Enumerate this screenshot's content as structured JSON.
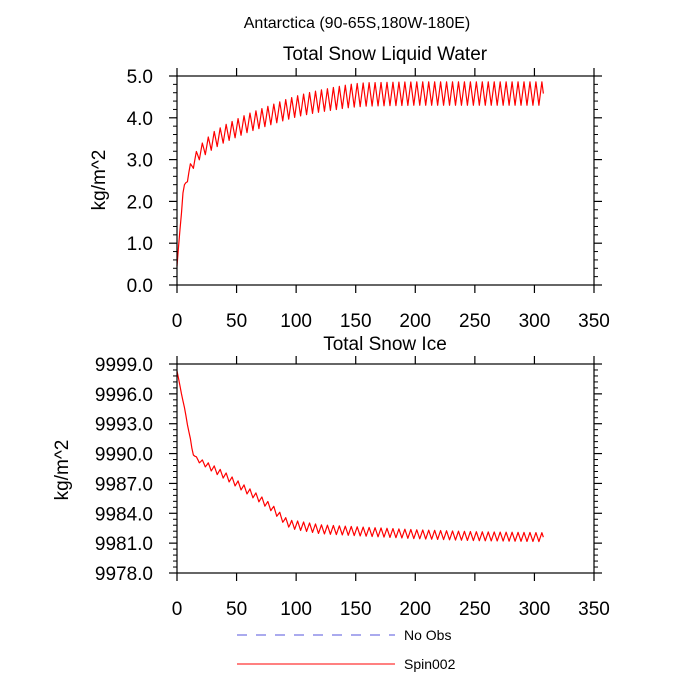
{
  "figure": {
    "title": "Antarctica (90-65S,180W-180E)"
  },
  "legend": {
    "entries": [
      {
        "label": "No Obs",
        "color": "#5555dd",
        "dashed": true
      },
      {
        "label": "Spin002",
        "color": "#ff0000",
        "dashed": false
      }
    ]
  },
  "chart_data": [
    {
      "type": "line",
      "title": "Total Snow Liquid Water",
      "xlabel": "",
      "ylabel": "kg/m^2",
      "xlim": [
        0,
        350
      ],
      "ylim": [
        0,
        5
      ],
      "x_ticks": [
        0,
        50,
        100,
        150,
        200,
        250,
        300,
        350
      ],
      "y_ticks": [
        0,
        1,
        2,
        3,
        4,
        5
      ],
      "y_tick_labels": [
        "0.0",
        "1.0",
        "2.0",
        "3.0",
        "4.0",
        "5.0"
      ],
      "grid": false,
      "series": [
        {
          "name": "Spin002",
          "color": "#ff0000",
          "x_start": 0,
          "x_end": 308,
          "seasonal_period": 5,
          "points": [
            [
              0,
              0.45
            ],
            [
              5,
              2.2
            ],
            [
              10,
              2.7
            ],
            [
              15,
              3.0
            ],
            [
              20,
              3.2
            ],
            [
              30,
              3.45
            ],
            [
              40,
              3.62
            ],
            [
              50,
              3.75
            ],
            [
              60,
              3.88
            ],
            [
              70,
              3.98
            ],
            [
              80,
              4.08
            ],
            [
              90,
              4.18
            ],
            [
              100,
              4.27
            ],
            [
              110,
              4.34
            ],
            [
              120,
              4.4
            ],
            [
              130,
              4.45
            ],
            [
              140,
              4.5
            ],
            [
              150,
              4.54
            ],
            [
              160,
              4.56
            ],
            [
              200,
              4.58
            ],
            [
              250,
              4.58
            ],
            [
              308,
              4.58
            ]
          ],
          "amplitude_points": [
            [
              0,
              0.0
            ],
            [
              10,
              0.12
            ],
            [
              30,
              0.2
            ],
            [
              60,
              0.22
            ],
            [
              100,
              0.25
            ],
            [
              150,
              0.28
            ],
            [
              308,
              0.28
            ]
          ]
        }
      ]
    },
    {
      "type": "line",
      "title": "Total Snow Ice",
      "xlabel": "",
      "ylabel": "kg/m^2",
      "xlim": [
        0,
        350
      ],
      "ylim": [
        9978,
        9999
      ],
      "x_ticks": [
        0,
        50,
        100,
        150,
        200,
        250,
        300,
        350
      ],
      "y_ticks": [
        9978,
        9981,
        9984,
        9987,
        9990,
        9993,
        9996,
        9999
      ],
      "y_tick_labels": [
        "9978.0",
        "9981.0",
        "9984.0",
        "9987.0",
        "9990.0",
        "9993.0",
        "9996.0",
        "9999.0"
      ],
      "grid": false,
      "series": [
        {
          "name": "Spin002",
          "color": "#ff0000",
          "x_start": 0,
          "x_end": 308,
          "seasonal_period": 5,
          "points": [
            [
              0,
              9998.3
            ],
            [
              3,
              9996.5
            ],
            [
              8,
              9993.5
            ],
            [
              13,
              9990.2
            ],
            [
              16,
              9989.5
            ],
            [
              20,
              9989.2
            ],
            [
              30,
              9988.5
            ],
            [
              40,
              9987.8
            ],
            [
              50,
              9987.0
            ],
            [
              60,
              9986.2
            ],
            [
              70,
              9985.4
            ],
            [
              80,
              9984.5
            ],
            [
              90,
              9983.3
            ],
            [
              95,
              9982.9
            ],
            [
              100,
              9982.8
            ],
            [
              120,
              9982.4
            ],
            [
              150,
              9982.2
            ],
            [
              200,
              9981.9
            ],
            [
              250,
              9981.7
            ],
            [
              308,
              9981.6
            ]
          ],
          "amplitude_points": [
            [
              0,
              0.0
            ],
            [
              12,
              0.15
            ],
            [
              30,
              0.35
            ],
            [
              90,
              0.35
            ],
            [
              100,
              0.45
            ],
            [
              150,
              0.45
            ],
            [
              308,
              0.45
            ]
          ]
        }
      ]
    }
  ]
}
